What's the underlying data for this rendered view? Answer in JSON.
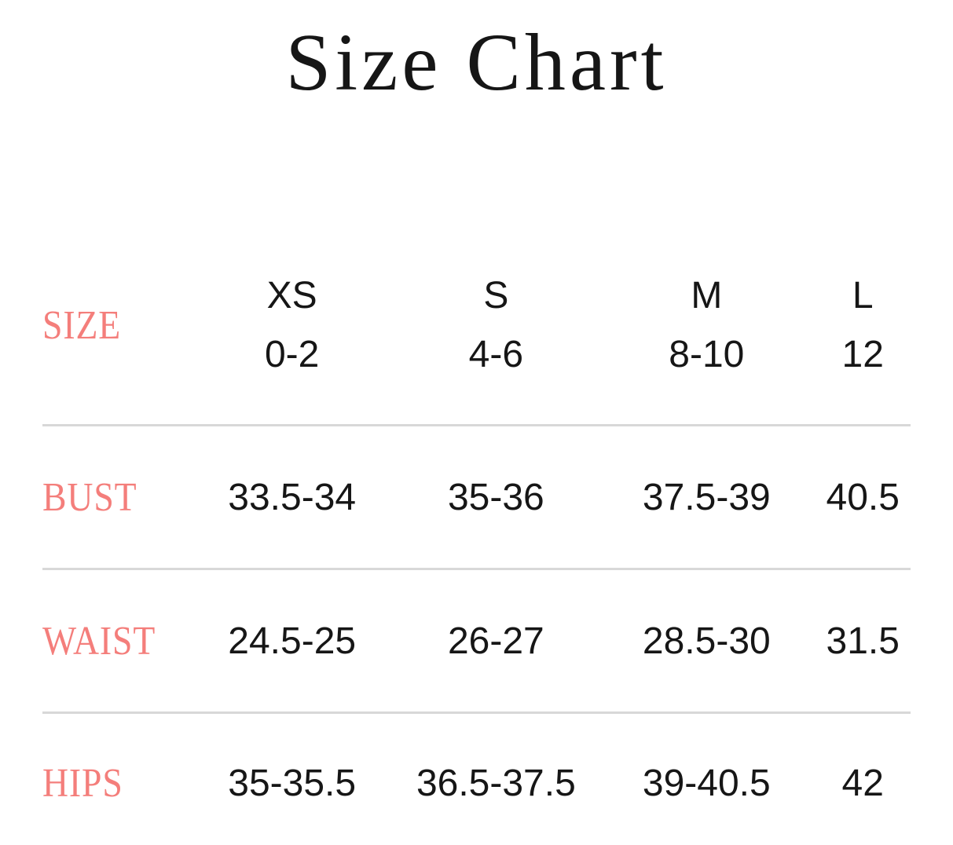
{
  "page": {
    "title": "Size Chart"
  },
  "table": {
    "header": {
      "label": "SIZE",
      "columns": [
        {
          "size": "XS",
          "range": "0-2"
        },
        {
          "size": "S",
          "range": "4-6"
        },
        {
          "size": "M",
          "range": "8-10"
        },
        {
          "size": "L",
          "range": "12"
        }
      ]
    },
    "rows": [
      {
        "label": "BUST",
        "values": [
          "33.5-34",
          "35-36",
          "37.5-39",
          "40.5"
        ]
      },
      {
        "label": "WAIST",
        "values": [
          "24.5-25",
          "26-27",
          "28.5-30",
          "31.5"
        ]
      },
      {
        "label": "HIPS",
        "values": [
          "35-35.5",
          "36.5-37.5",
          "39-40.5",
          "42"
        ]
      }
    ],
    "colors": {
      "accent": "#f47e7b",
      "text": "#161616",
      "divider": "#d8d8d8",
      "background": "#ffffff"
    }
  }
}
